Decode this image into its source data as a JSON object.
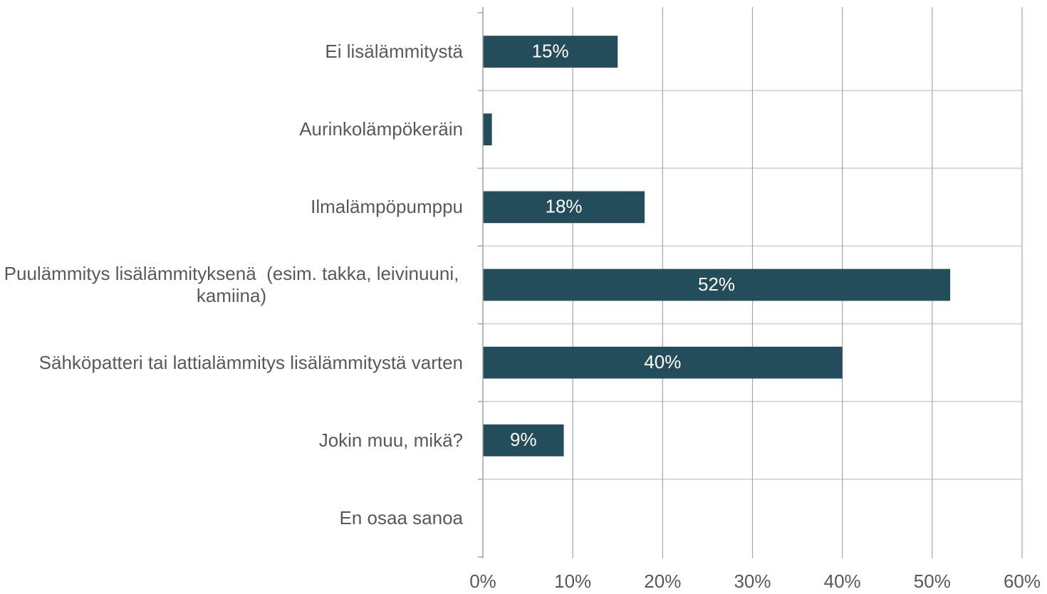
{
  "chart_data": {
    "type": "bar",
    "orientation": "horizontal",
    "categories": [
      "Ei lisälämmitystä",
      "Aurinkolämpökeräin",
      "Ilmalämpöpumppu",
      "Puulämmitys lisälämmityksenä  (esim. takka, leivinuuni, kamiina)",
      "Sähköpatteri tai lattialämmitys lisälämmitystä varten",
      "Jokin muu, mikä?",
      "En osaa sanoa"
    ],
    "values": [
      15,
      1,
      18,
      52,
      40,
      9,
      0
    ],
    "value_labels": [
      "15%",
      null,
      "18%",
      "52%",
      "40%",
      "9%",
      null
    ],
    "color": "#244d5b",
    "xlim": [
      0,
      60
    ],
    "xticks": [
      {
        "value": 0,
        "label": "0%"
      },
      {
        "value": 10,
        "label": "10%"
      },
      {
        "value": 20,
        "label": "20%"
      },
      {
        "value": 30,
        "label": "30%"
      },
      {
        "value": 40,
        "label": "40%"
      },
      {
        "value": 50,
        "label": "50%"
      },
      {
        "value": 60,
        "label": "60%"
      }
    ],
    "grid": true
  }
}
